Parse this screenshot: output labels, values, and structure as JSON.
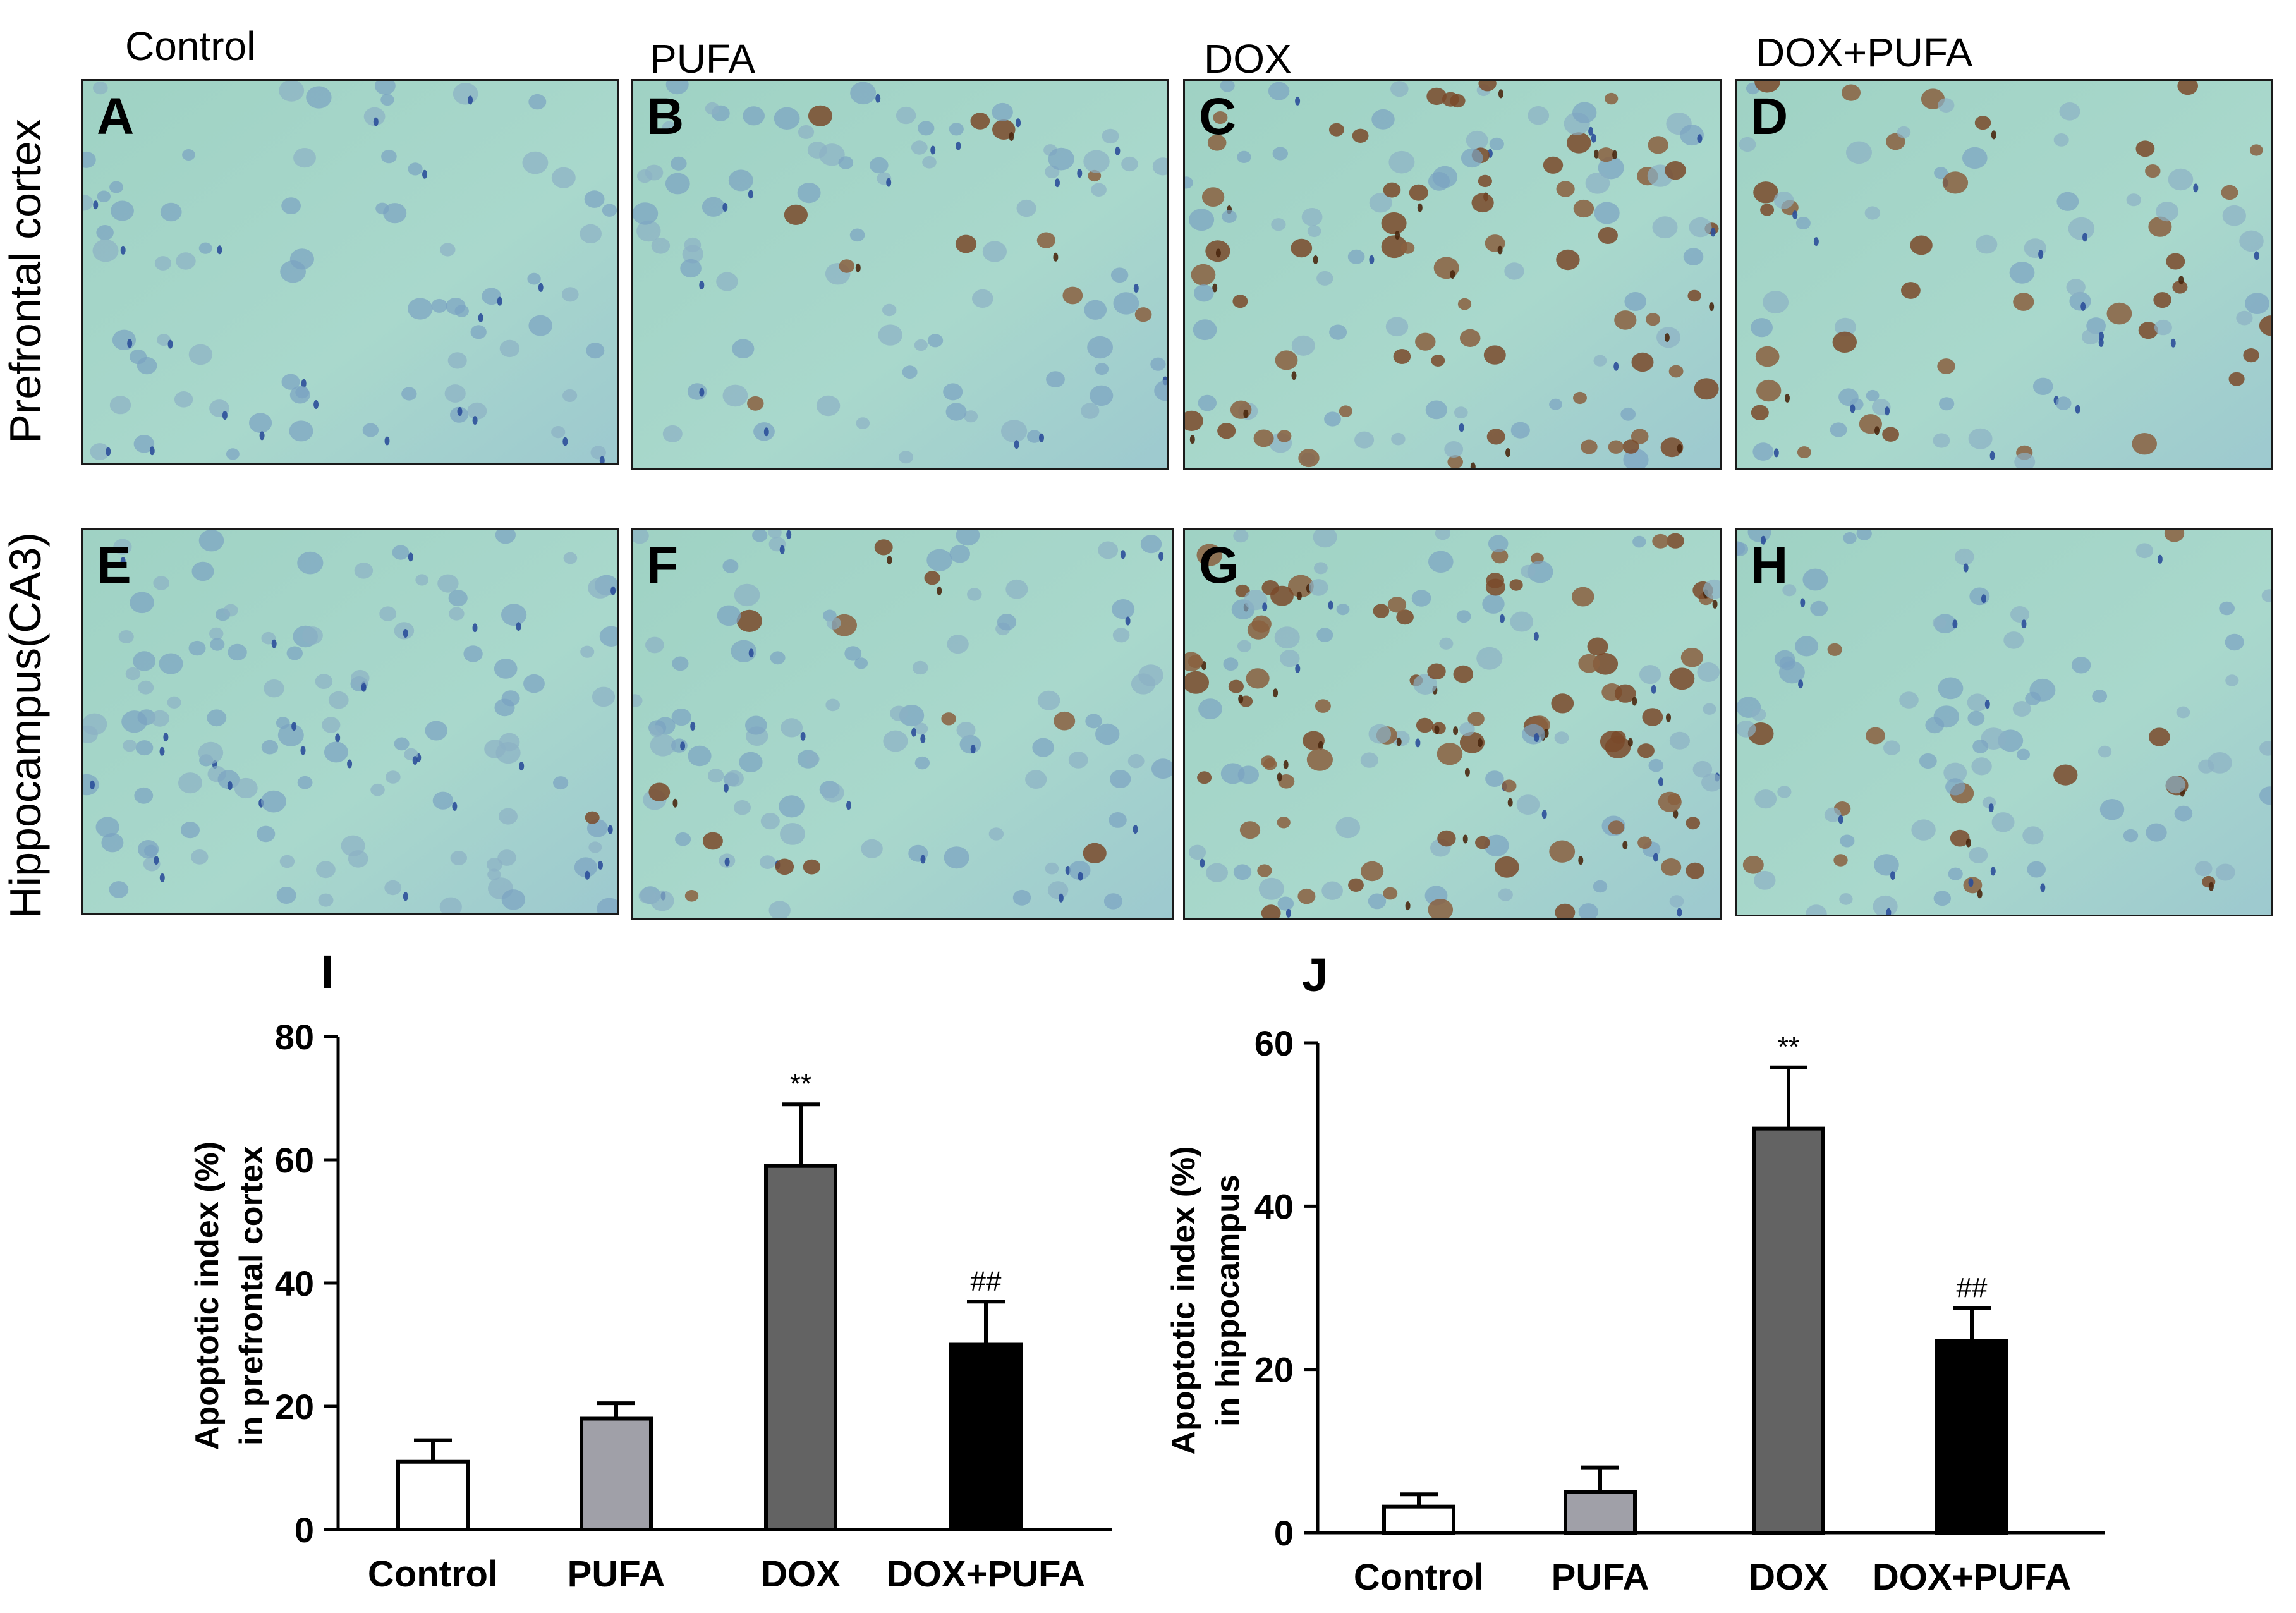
{
  "columns": [
    "Control",
    "PUFA",
    "DOX",
    "DOX+PUFA"
  ],
  "rows": [
    "Prefrontal cortex",
    "Hippocampus(CA3)"
  ],
  "panels": [
    {
      "letter": "A",
      "density": 0.0,
      "nuclei": 70
    },
    {
      "letter": "B",
      "density": 0.15,
      "nuclei": 85
    },
    {
      "letter": "C",
      "density": 0.55,
      "nuclei": 120
    },
    {
      "letter": "D",
      "density": 0.4,
      "nuclei": 80
    },
    {
      "letter": "E",
      "density": 0.03,
      "nuclei": 110
    },
    {
      "letter": "F",
      "density": 0.12,
      "nuclei": 100
    },
    {
      "letter": "G",
      "density": 0.6,
      "nuclei": 140
    },
    {
      "letter": "H",
      "density": 0.15,
      "nuclei": 90
    }
  ],
  "colors": {
    "control": "#ffffff",
    "pufa": "#a0a0a8",
    "dox": "#636363",
    "doxpufa": "#000000",
    "tissue": "#a7d6c9"
  },
  "chart_data": [
    {
      "panel": "I",
      "type": "bar",
      "categories": [
        "Control",
        "PUFA",
        "DOX",
        "DOX+PUFA"
      ],
      "values": [
        11,
        18,
        59,
        30
      ],
      "errors": [
        3.5,
        2.5,
        10,
        7
      ],
      "significance": [
        "",
        "",
        "**",
        "##"
      ],
      "ylabel_lines": [
        "Apoptotic index (%)",
        "in prefrontal cortex"
      ],
      "ylim": [
        0,
        80
      ],
      "yticks": [
        0,
        20,
        40,
        60,
        80
      ]
    },
    {
      "panel": "J",
      "type": "bar",
      "categories": [
        "Control",
        "PUFA",
        "DOX",
        "DOX+PUFA"
      ],
      "values": [
        3.2,
        5,
        49.5,
        23.5
      ],
      "errors": [
        1.5,
        3,
        7.5,
        4
      ],
      "significance": [
        "",
        "",
        "**",
        "##"
      ],
      "ylabel_lines": [
        "Apoptotic index (%)",
        "in hippocampus"
      ],
      "ylim": [
        0,
        60
      ],
      "yticks": [
        0,
        20,
        40,
        60
      ]
    }
  ]
}
